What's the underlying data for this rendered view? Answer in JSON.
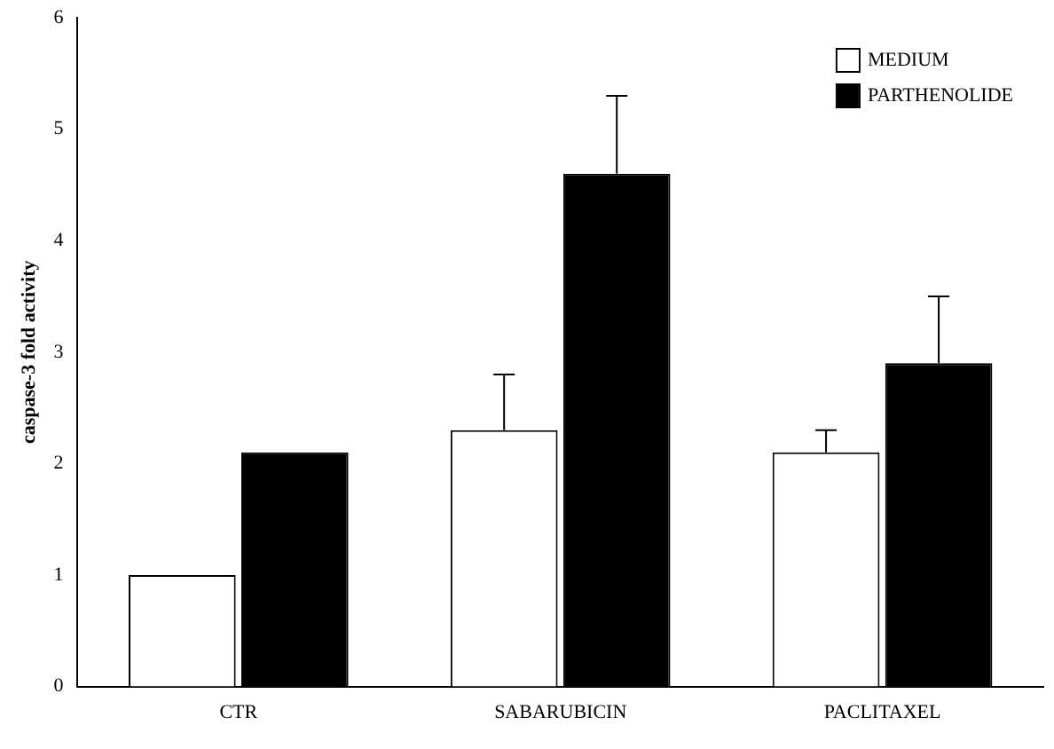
{
  "chart_data": {
    "type": "bar",
    "ylabel": "caspase-3 fold activity",
    "categories": [
      "CTR",
      "SABARUBICIN",
      "PACLITAXEL"
    ],
    "series": [
      {
        "name": "MEDIUM",
        "color": "#ffffff",
        "values": [
          1,
          2.3,
          2.1
        ],
        "errors": [
          null,
          [
            2.3,
            2.8
          ],
          [
            2.1,
            2.3
          ]
        ]
      },
      {
        "name": "PARTHENOLIDE",
        "color": "#000000",
        "values": [
          2.1,
          4.6,
          2.9
        ],
        "errors": [
          null,
          [
            4.6,
            5.3
          ],
          [
            2.9,
            3.5
          ]
        ]
      }
    ],
    "ylim": [
      0,
      6
    ],
    "yticks": [
      0,
      1,
      2,
      3,
      4,
      5,
      6
    ],
    "grid": false,
    "legend": "top right"
  }
}
